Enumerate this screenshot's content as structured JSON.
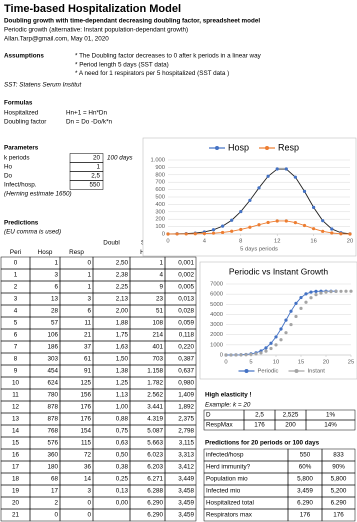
{
  "header": {
    "title": "Time-based Hospitalization Model",
    "subtitle": "Doubling growth with time-dependant decreasing doubling factor, spreadsheet model",
    "lines": [
      "Periodic growth (alternative: Instant population-dependant growth)",
      "Allan.Tarp@gmail.com, May 01, 2020"
    ]
  },
  "assumptions": {
    "label": "Assumptions",
    "items": [
      "* The Doubling factor decreases to 0 after k periods in a linear way",
      "* Period length 5 days (SST data)",
      "* A need for 1 respirators per 5 hospitalized (SST data )"
    ],
    "note": "SST: Statens Serum Institut"
  },
  "formulas": {
    "heading": "Formulas",
    "rows": [
      [
        "Hospitalized",
        "Hn+1 = Hn*Dn"
      ],
      [
        "Doubling factor",
        "Dn = Do -Do/k*n"
      ]
    ]
  },
  "parameters": {
    "heading": "Parameters",
    "rows": [
      [
        "k periods",
        "20",
        "100 days"
      ],
      [
        "Ho",
        "1"
      ],
      [
        "Do",
        "2,5"
      ],
      [
        "Infect/hosp.",
        "550"
      ]
    ],
    "note": "(Herning estimate 1650)"
  },
  "predictions": {
    "heading": "Predictions",
    "note": "(EU comma is used)",
    "header": [
      [
        null,
        null,
        null,
        "Doubl",
        "Sum",
        "Infected"
      ],
      [
        "Peri",
        "Hosp",
        "Resp",
        null,
        "Hosp",
        "mio"
      ]
    ],
    "rows": [
      [
        "0",
        "1",
        "0",
        "2,50",
        "1",
        "0,001"
      ],
      [
        "1",
        "3",
        "1",
        "2,38",
        "4",
        "0,002"
      ],
      [
        "2",
        "6",
        "1",
        "2,25",
        "9",
        "0,005"
      ],
      [
        "3",
        "13",
        "3",
        "2,13",
        "23",
        "0,013"
      ],
      [
        "4",
        "28",
        "6",
        "2,00",
        "51",
        "0,028"
      ],
      [
        "5",
        "57",
        "11",
        "1,88",
        "108",
        "0,059"
      ],
      [
        "6",
        "106",
        "21",
        "1,75",
        "214",
        "0,118"
      ],
      [
        "7",
        "186",
        "37",
        "1,63",
        "401",
        "0,220"
      ],
      [
        "8",
        "303",
        "61",
        "1,50",
        "703",
        "0,387"
      ],
      [
        "9",
        "454",
        "91",
        "1,38",
        "1.158",
        "0,637"
      ],
      [
        "10",
        "624",
        "125",
        "1,25",
        "1.782",
        "0,980"
      ],
      [
        "11",
        "780",
        "156",
        "1,13",
        "2.562",
        "1,409"
      ],
      [
        "12",
        "878",
        "176",
        "1,00",
        "3.441",
        "1,892"
      ],
      [
        "13",
        "878",
        "176",
        "0,88",
        "4.319",
        "2,375"
      ],
      [
        "14",
        "768",
        "154",
        "0,75",
        "5.087",
        "2,798"
      ],
      [
        "15",
        "576",
        "115",
        "0,63",
        "5.663",
        "3,115"
      ],
      [
        "16",
        "360",
        "72",
        "0,50",
        "6.023",
        "3,313"
      ],
      [
        "17",
        "180",
        "36",
        "0,38",
        "6.203",
        "3,412"
      ],
      [
        "18",
        "68",
        "14",
        "0,25",
        "6.271",
        "3,449"
      ],
      [
        "19",
        "17",
        "3",
        "0,13",
        "6.288",
        "3,458"
      ],
      [
        "20",
        "2",
        "0",
        "0,00",
        "6.290",
        "3,459"
      ],
      [
        "21",
        "0",
        "0",
        null,
        "6.290",
        "3,459"
      ]
    ]
  },
  "elasticity": {
    "heading": "High elasticity !",
    "example": "Example: k = 20",
    "rows": [
      [
        "D",
        "2,5",
        "2,525",
        "1%"
      ],
      [
        "RespMax",
        "176",
        "200",
        "14%"
      ]
    ]
  },
  "forecast": {
    "heading": "Predictions for 20 periods or 100 days",
    "rows": [
      [
        "infected/hosp",
        "550",
        "833"
      ],
      [
        "Herd immunity?",
        "60%",
        "90%"
      ],
      [
        "Population mio",
        "5,800",
        "5,800"
      ],
      [
        "Infected mio",
        "3,459",
        "5,200"
      ],
      [
        "Hospitalized total",
        "6.290",
        "6.290"
      ],
      [
        "Respirators max",
        "176",
        "176"
      ]
    ]
  },
  "chart_data": [
    {
      "type": "line",
      "x_label": "5 days periods",
      "legend": "top",
      "x": [
        0,
        1,
        2,
        3,
        4,
        5,
        6,
        7,
        8,
        9,
        10,
        11,
        12,
        13,
        14,
        15,
        16,
        17,
        18,
        19,
        20
      ],
      "series": [
        {
          "name": "Hosp",
          "color": "#4472c4",
          "values": [
            1,
            3,
            6,
            13,
            28,
            57,
            106,
            186,
            303,
            454,
            624,
            780,
            878,
            878,
            768,
            576,
            360,
            180,
            68,
            17,
            2
          ]
        },
        {
          "name": "Resp",
          "color": "#ed7d31",
          "values": [
            0,
            1,
            1,
            3,
            6,
            11,
            21,
            37,
            61,
            91,
            125,
            156,
            176,
            176,
            154,
            115,
            72,
            36,
            14,
            3,
            0
          ]
        }
      ],
      "xlim": [
        0,
        20
      ],
      "xticks": [
        0,
        4,
        8,
        12,
        16,
        20
      ],
      "ylim": [
        0,
        1000
      ],
      "yticks": [
        0,
        100,
        200,
        300,
        400,
        500,
        600,
        700,
        800,
        900,
        {
          "value": 1000,
          "label": "1.000"
        }
      ],
      "grid": true
    },
    {
      "type": "line",
      "title": "Periodic vs Instant Growth",
      "legend": "bottom",
      "x": [
        0,
        1,
        2,
        3,
        4,
        5,
        6,
        7,
        8,
        9,
        10,
        11,
        12,
        13,
        14,
        15,
        16,
        17,
        18,
        19,
        20,
        21,
        22,
        23,
        24,
        25
      ],
      "series": [
        {
          "name": "Periodic",
          "color": "#4472c4",
          "values": [
            1,
            4,
            9,
            23,
            51,
            108,
            214,
            401,
            703,
            1158,
            1782,
            2562,
            3441,
            4319,
            5087,
            5663,
            6023,
            6203,
            6271,
            6288,
            6290,
            6290,
            6290,
            null,
            null,
            null
          ]
        },
        {
          "name": "Instant",
          "color": "#a5a5a5",
          "values": [
            1,
            3,
            6,
            13,
            28,
            57,
            110,
            210,
            380,
            640,
            1000,
            1500,
            2200,
            3000,
            3800,
            4600,
            5200,
            5650,
            5950,
            6100,
            6200,
            6250,
            6270,
            6280,
            6290,
            6290
          ]
        }
      ],
      "xlim": [
        0,
        25
      ],
      "xticks": [
        0,
        5,
        10,
        15,
        20,
        25
      ],
      "ylim": [
        0,
        7000
      ],
      "yticks": [
        0,
        1000,
        2000,
        3000,
        4000,
        5000,
        6000,
        7000
      ],
      "grid": true
    }
  ]
}
